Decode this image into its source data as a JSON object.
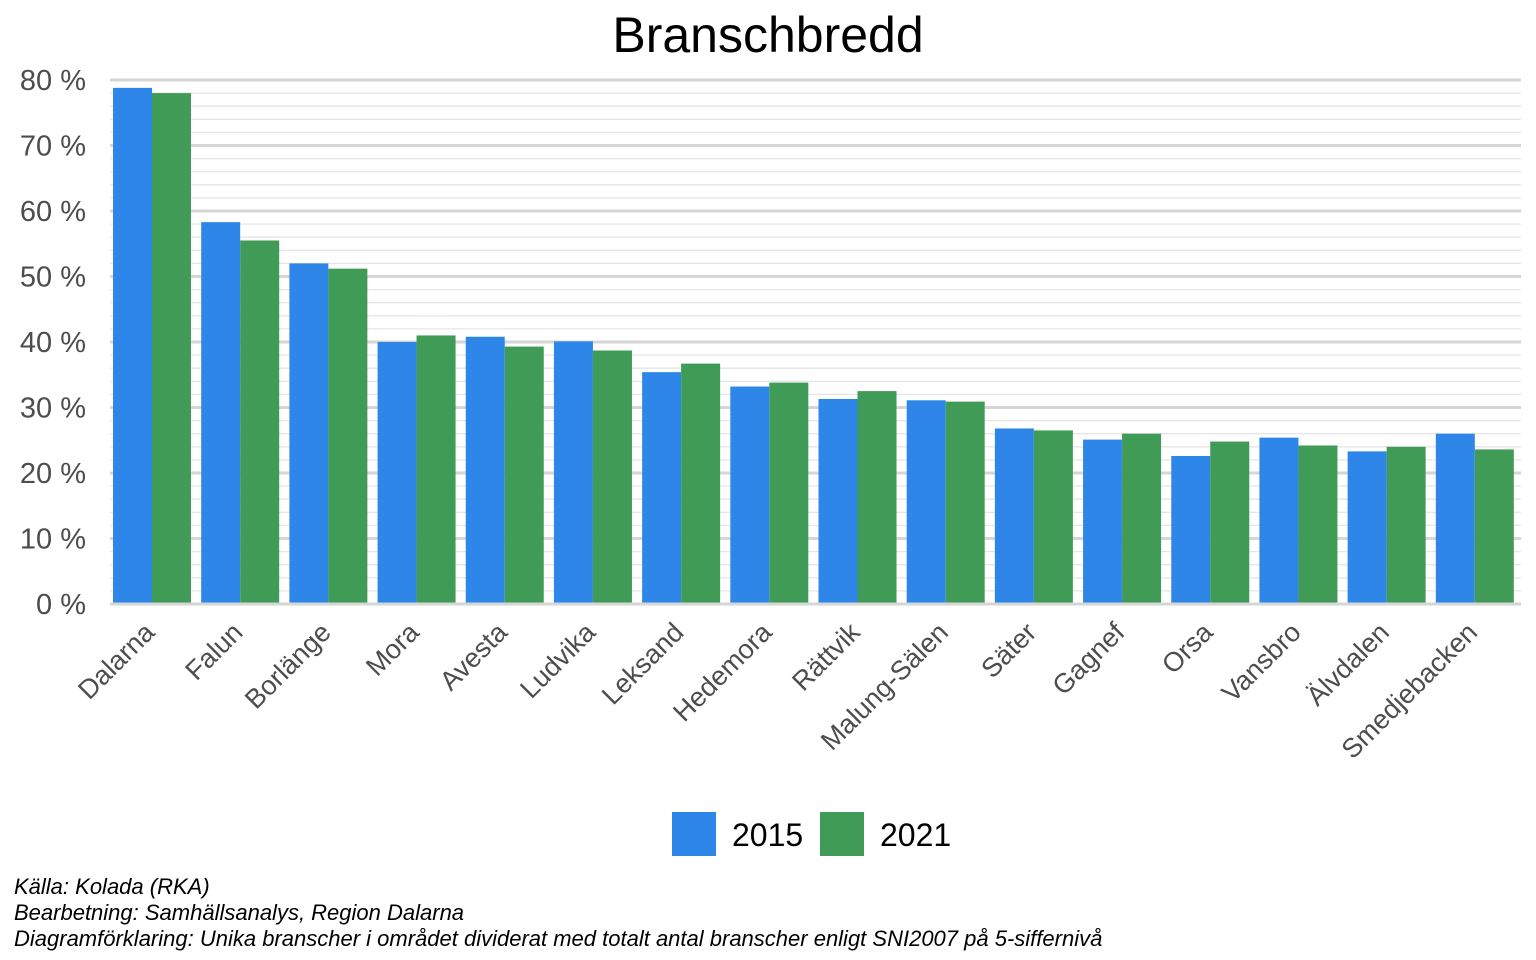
{
  "chart_data": {
    "type": "bar",
    "title": "Branschbredd",
    "xlabel": "",
    "ylabel": "",
    "ylim": [
      0,
      80
    ],
    "ytick_labels": [
      "0 %",
      "10 %",
      "20 %",
      "30 %",
      "40 %",
      "50 %",
      "60 %",
      "70 %",
      "80 %"
    ],
    "categories": [
      "Dalarna",
      "Falun",
      "Borlänge",
      "Mora",
      "Avesta",
      "Ludvika",
      "Leksand",
      "Hedemora",
      "Rättvik",
      "Malung-Sälen",
      "Säter",
      "Gagnef",
      "Orsa",
      "Vansbro",
      "Älvdalen",
      "Smedjebacken"
    ],
    "series": [
      {
        "name": "2015",
        "color": "#2E86E8",
        "values": [
          78.8,
          58.3,
          52.0,
          40.0,
          40.8,
          40.1,
          35.4,
          33.2,
          31.3,
          31.1,
          26.8,
          25.1,
          22.6,
          25.4,
          23.3,
          26.0
        ]
      },
      {
        "name": "2021",
        "color": "#3F9B55",
        "values": [
          78.0,
          55.5,
          51.2,
          41.0,
          39.3,
          38.7,
          36.7,
          33.8,
          32.5,
          30.9,
          26.5,
          26.0,
          24.8,
          24.2,
          24.0,
          23.6
        ]
      }
    ],
    "grid": true,
    "legend_position": "bottom"
  },
  "captions": {
    "source": "Källa: Kolada (RKA)",
    "processing": "Bearbetning: Samhällsanalys, Region Dalarna",
    "explanation": "Diagramförklaring: Unika branscher i området dividerat med totalt antal branscher enligt SNI2007 på 5-siffernivå"
  }
}
